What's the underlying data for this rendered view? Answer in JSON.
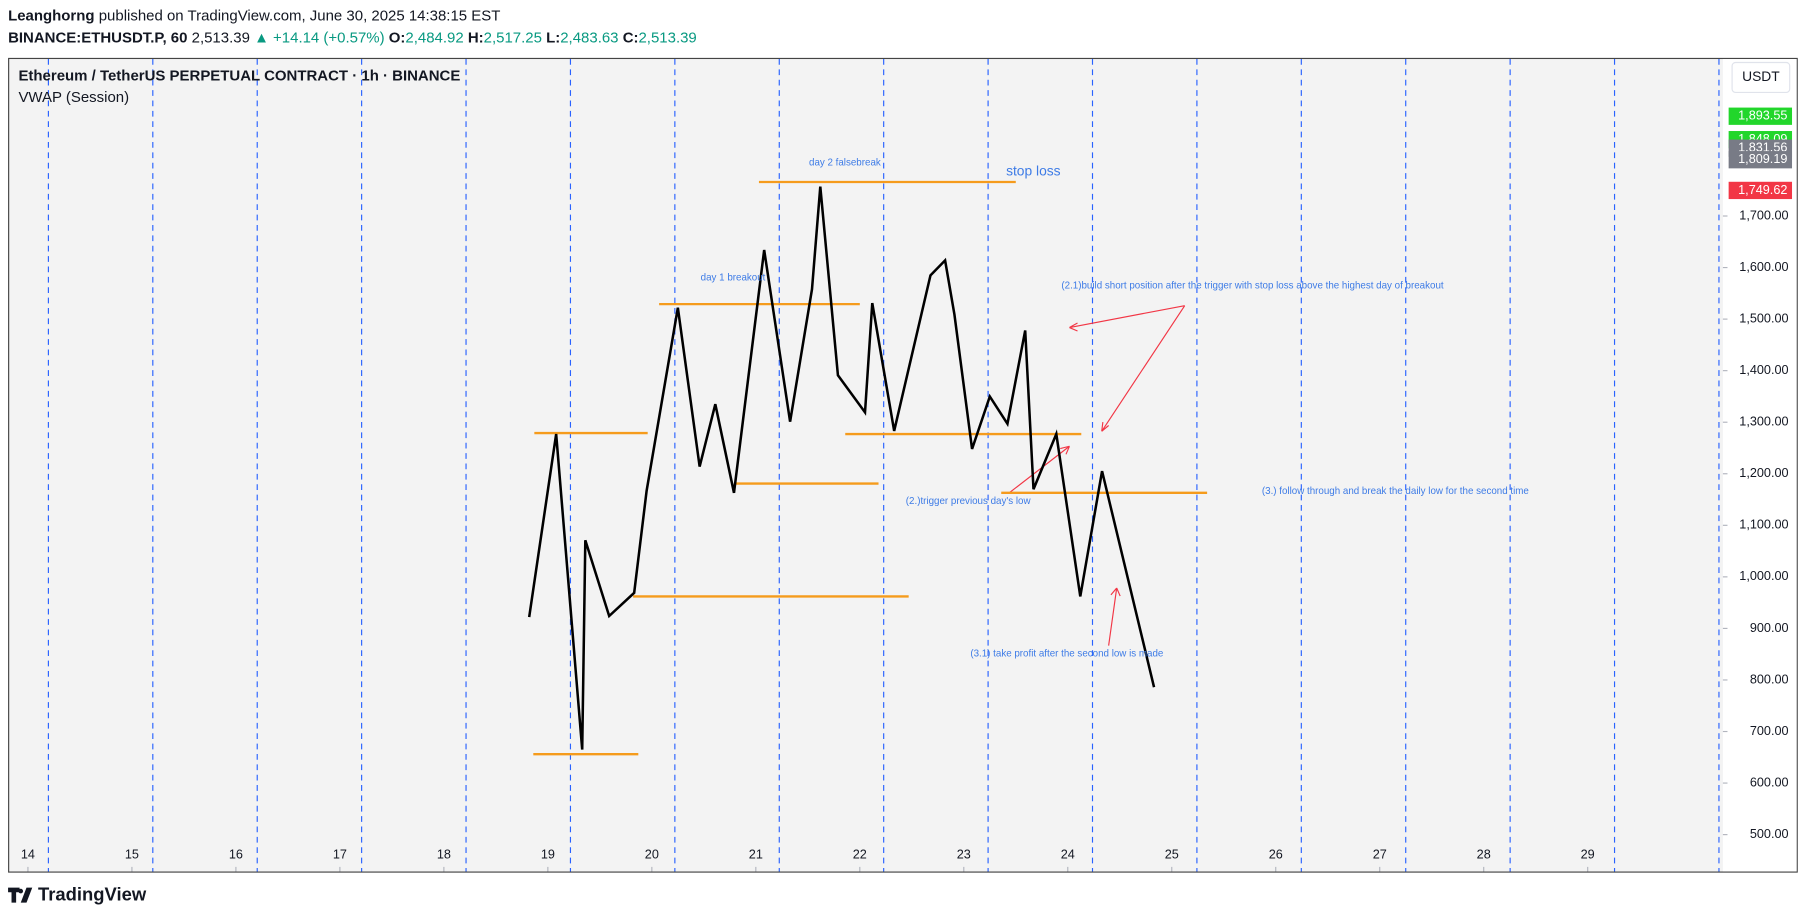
{
  "header": {
    "author": "Leanghorng",
    "published": "published on TradingView.com, June 30, 2025 14:38:15 EST",
    "symbol": "BINANCE:ETHUSDT.P, 60",
    "last": "2,513.39",
    "change": "▲ +14.14 (+0.57%)",
    "open_label": "O:",
    "open": "2,484.92",
    "high_label": "H:",
    "high": "2,517.25",
    "low_label": "L:",
    "low": "2,483.63",
    "close_label": "C:",
    "close": "2,513.39",
    "logo": "TradingView"
  },
  "chart_data": {
    "type": "line",
    "title": "Ethereum / TetherUS PERPETUAL CONTRACT · 1h · BINANCE",
    "subtitle": "VWAP (Session)",
    "currency": "USDT",
    "color": "#000000",
    "xlim": [
      13.82,
      30.3
    ],
    "xticks": [
      14,
      15,
      16,
      17,
      18,
      19,
      20,
      21,
      22,
      23,
      24,
      25,
      26,
      27,
      28,
      29
    ],
    "ylim": [
      486.6,
      2004.5
    ],
    "yticks": [
      {
        "value": 500,
        "label": "500.00"
      },
      {
        "value": 600,
        "label": "600.00"
      },
      {
        "value": 700,
        "label": "700.00"
      },
      {
        "value": 800,
        "label": "800.00"
      },
      {
        "value": 900,
        "label": "900.00"
      },
      {
        "value": 1000,
        "label": "1,000.00"
      },
      {
        "value": 1100,
        "label": "1,100.00"
      },
      {
        "value": 1200,
        "label": "1,200.00"
      },
      {
        "value": 1300,
        "label": "1,300.00"
      },
      {
        "value": 1400,
        "label": "1,400.00"
      },
      {
        "value": 1500,
        "label": "1,500.00"
      },
      {
        "value": 1600,
        "label": "1,600.00"
      },
      {
        "value": 1700,
        "label": "1,700.00"
      }
    ],
    "x": [
      18.82,
      19.08,
      19.33,
      19.36,
      19.59,
      19.83,
      19.95,
      20.25,
      20.46,
      20.61,
      20.79,
      21.08,
      21.33,
      21.54,
      21.62,
      21.79,
      22.05,
      22.12,
      22.33,
      22.68,
      22.82,
      22.91,
      23.08,
      23.25,
      23.42,
      23.59,
      23.67,
      23.89,
      24.12,
      24.33,
      24.83
    ],
    "values": [
      922,
      1277,
      665,
      1071,
      924,
      969,
      1167,
      1522,
      1214,
      1335,
      1163,
      1634,
      1301,
      1558,
      1757,
      1391,
      1319,
      1531,
      1283,
      1585,
      1614,
      1509,
      1248,
      1350,
      1297,
      1478,
      1170,
      1277,
      962,
      1205,
      786
    ],
    "hlines_color": "#f59b1c",
    "hlines": [
      {
        "x": [
          18.87,
          19.96
        ],
        "y": 1279
      },
      {
        "x": [
          18.86,
          19.87
        ],
        "y": 656
      },
      {
        "x": [
          20.07,
          22.0
        ],
        "y": 1529
      },
      {
        "x": [
          21.03,
          23.5
        ],
        "y": 1766
      },
      {
        "x": [
          20.8,
          22.18
        ],
        "y": 1181
      },
      {
        "x": [
          19.82,
          22.47
        ],
        "y": 962
      },
      {
        "x": [
          21.86,
          24.13
        ],
        "y": 1277
      },
      {
        "x": [
          23.36,
          25.34
        ],
        "y": 1163
      }
    ],
    "price_labels": [
      {
        "value": 1893.55,
        "label": "1,893.55",
        "color": "#22d62b"
      },
      {
        "value": 1848.09,
        "label": "1,848.09",
        "color": "#22d62b"
      },
      {
        "value": 1831.56,
        "label": "1,831.56",
        "color": "#787b86"
      },
      {
        "value": 1809.19,
        "label": "1,809.19",
        "color": "#787b86"
      },
      {
        "value": 1749.62,
        "label": "1,749.62",
        "color": "#f23645"
      }
    ],
    "annotations": [
      "day 2 falsebreak",
      "stop loss",
      "day 1 breakout",
      "(2.1)build short position after the trigger with stop loss above the highest day of breakout",
      "(2.)trigger previous day's low",
      "(3.) follow through and break the daily low for the second time",
      "(3.1) take profit after the second low is made"
    ]
  }
}
